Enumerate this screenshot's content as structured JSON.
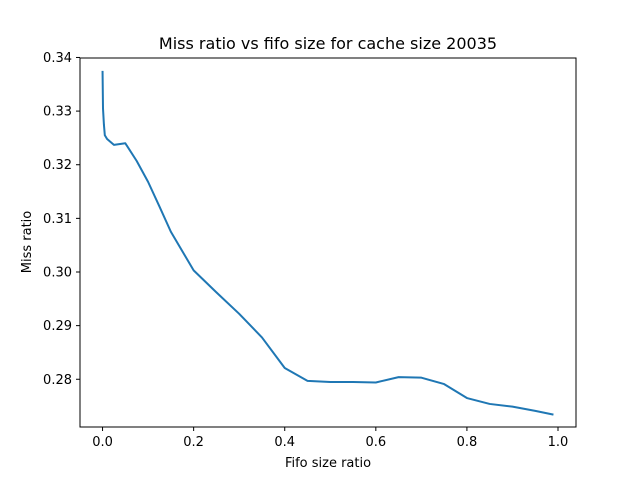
{
  "chart_data": {
    "type": "line",
    "title": "Miss ratio vs fifo size for cache size 20035",
    "xlabel": "Fifo size ratio",
    "ylabel": "Miss ratio",
    "xlim": [
      -0.0495,
      1.0395
    ],
    "ylim": [
      0.2711,
      0.3399
    ],
    "xticks": [
      0.0,
      0.2,
      0.4,
      0.6,
      0.8,
      1.0
    ],
    "xtick_labels": [
      "0.0",
      "0.2",
      "0.4",
      "0.6",
      "0.8",
      "1.0"
    ],
    "yticks": [
      0.28,
      0.29,
      0.3,
      0.31,
      0.32,
      0.33,
      0.34
    ],
    "ytick_labels": [
      "0.28",
      "0.29",
      "0.30",
      "0.31",
      "0.32",
      "0.33",
      "0.34"
    ],
    "grid": false,
    "legend": false,
    "line_color": "#1f77b4",
    "series": [
      {
        "x": [
          0.0,
          0.001,
          0.003,
          0.005,
          0.01,
          0.025,
          0.05,
          0.075,
          0.1,
          0.125,
          0.15,
          0.2,
          0.25,
          0.3,
          0.35,
          0.4,
          0.45,
          0.5,
          0.55,
          0.6,
          0.65,
          0.7,
          0.75,
          0.8,
          0.85,
          0.9,
          0.95,
          0.99
        ],
        "y": [
          0.3375,
          0.3305,
          0.3275,
          0.3255,
          0.3248,
          0.3237,
          0.324,
          0.3207,
          0.3168,
          0.3122,
          0.3075,
          0.3003,
          0.2962,
          0.2922,
          0.2878,
          0.2821,
          0.2797,
          0.2795,
          0.2795,
          0.2794,
          0.2804,
          0.2803,
          0.2791,
          0.2765,
          0.2754,
          0.2749,
          0.2741,
          0.2734
        ]
      }
    ]
  }
}
